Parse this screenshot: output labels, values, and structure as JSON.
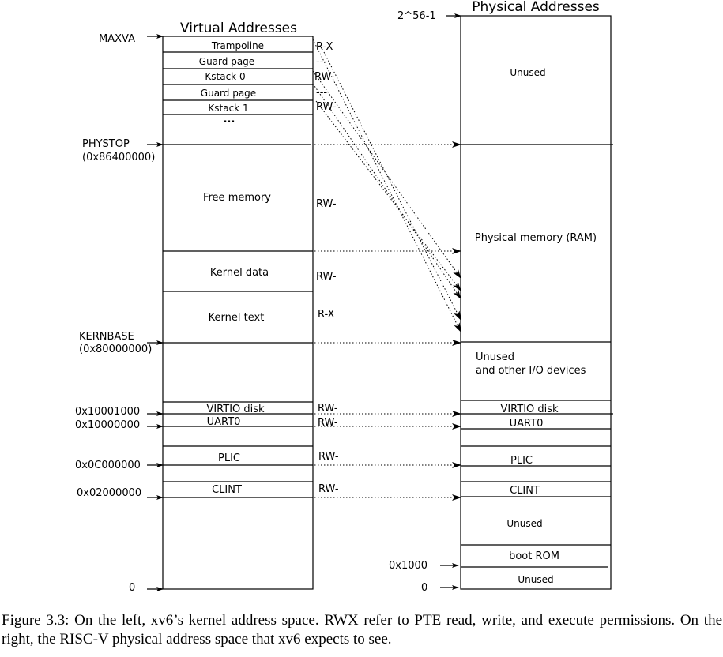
{
  "virtual": {
    "title": "Virtual Addresses",
    "regions": [
      "Trampoline",
      "Guard page",
      "Kstack 0",
      "Guard page",
      "Kstack 1",
      "...",
      "Free memory",
      "Kernel data",
      "Kernel text",
      "VIRTIO disk",
      "UART0",
      "PLIC",
      "CLINT"
    ],
    "perms": [
      "R-X",
      "---",
      "RW-",
      "---",
      "RW-",
      "RW-",
      "RW-",
      "R-X",
      "RW-",
      "RW-",
      "RW-",
      "RW-"
    ],
    "addresses": [
      "MAXVA",
      "PHYSTOP",
      "(0x86400000)",
      "KERNBASE",
      "(0x80000000)",
      "0x10001000",
      "0x10000000",
      "0x0C000000",
      "0x02000000",
      "0"
    ]
  },
  "physical": {
    "title": "Physical Addresses",
    "regions": [
      "Unused",
      "Physical memory (RAM)",
      "Unused",
      "and other I/O devices",
      "VIRTIO disk",
      "UART0",
      "PLIC",
      "CLINT",
      "Unused",
      "boot ROM",
      "Unused"
    ],
    "addresses": [
      "2^56-1",
      "0x1000",
      "0"
    ]
  },
  "caption": "Figure 3.3: On the left, xv6’s kernel address space. RWX refer to PTE read, write, and execute permissions. On the right, the RISC-V physical address space that xv6 expects to see."
}
